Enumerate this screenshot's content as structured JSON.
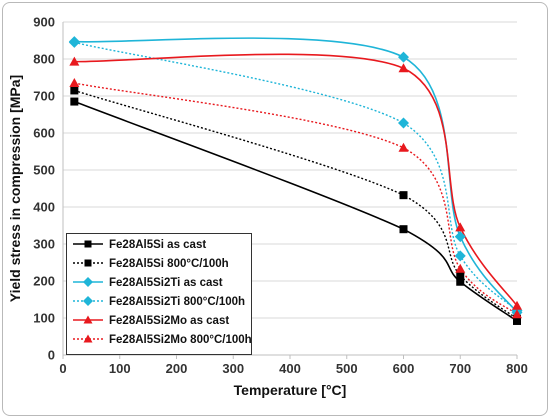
{
  "chart_data": {
    "type": "line",
    "xlabel": "Temperature [°C]",
    "ylabel": "Yield stress in compression [MPa]",
    "xlim": [
      0,
      800
    ],
    "ylim": [
      0,
      900
    ],
    "xticks": [
      0,
      100,
      200,
      300,
      400,
      500,
      600,
      700,
      800
    ],
    "yticks": [
      0,
      100,
      200,
      300,
      400,
      500,
      600,
      700,
      800,
      900
    ],
    "grid": "horizontal",
    "legend_position": "bottom-left",
    "series": [
      {
        "name": "Fe28Al5Si as cast",
        "color": "#000000",
        "marker": "square",
        "dashed": false,
        "x": [
          20,
          600,
          700,
          800
        ],
        "y": [
          685,
          340,
          198,
          92
        ]
      },
      {
        "name": "Fe28Al5Si 800°C/100h",
        "color": "#000000",
        "marker": "square",
        "dashed": true,
        "x": [
          20,
          600,
          700,
          800
        ],
        "y": [
          715,
          432,
          215,
          98
        ]
      },
      {
        "name": "Fe28Al5Si2Ti as cast",
        "color": "#1fb5d8",
        "marker": "diamond",
        "dashed": false,
        "x": [
          20,
          600,
          700,
          800
        ],
        "y": [
          847,
          805,
          320,
          115
        ]
      },
      {
        "name": "Fe28Al5Si2Ti 800°C/100h",
        "color": "#1fb5d8",
        "marker": "diamond",
        "dashed": true,
        "x": [
          20,
          600,
          700,
          800
        ],
        "y": [
          845,
          627,
          268,
          120
        ]
      },
      {
        "name": "Fe28Al5Si2Mo as cast",
        "color": "#e8191e",
        "marker": "triangle",
        "dashed": false,
        "x": [
          20,
          600,
          700,
          800
        ],
        "y": [
          793,
          775,
          345,
          133
        ]
      },
      {
        "name": "Fe28Al5Si2Mo 800°C/100h",
        "color": "#e8191e",
        "marker": "triangle",
        "dashed": true,
        "x": [
          20,
          600,
          700,
          800
        ],
        "y": [
          735,
          560,
          233,
          110
        ]
      }
    ]
  }
}
